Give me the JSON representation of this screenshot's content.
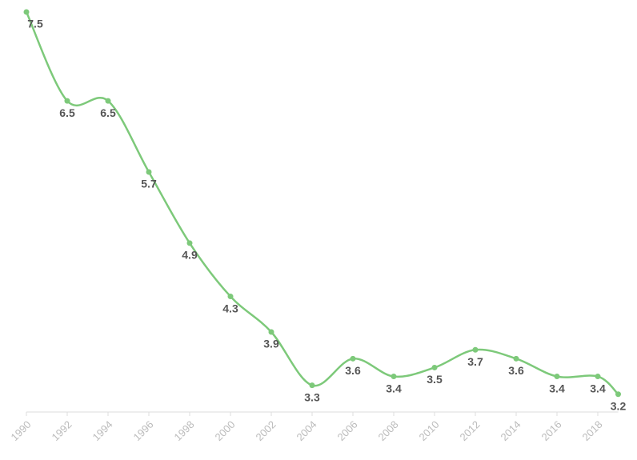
{
  "chart_data": {
    "type": "line",
    "x": [
      1990,
      1992,
      1994,
      1996,
      1998,
      2000,
      2002,
      2004,
      2006,
      2008,
      2010,
      2012,
      2014,
      2016,
      2018,
      2019
    ],
    "values": [
      7.5,
      6.5,
      6.5,
      5.7,
      4.9,
      4.3,
      3.9,
      3.3,
      3.6,
      3.4,
      3.5,
      3.7,
      3.6,
      3.4,
      3.4,
      3.2
    ],
    "color": "#7dc97a",
    "xlim": [
      1990,
      2019
    ],
    "xticks": [
      1990,
      1992,
      1994,
      1996,
      1998,
      2000,
      2002,
      2004,
      2006,
      2008,
      2010,
      2012,
      2014,
      2016,
      2018
    ],
    "ylim": [
      3,
      7.5
    ],
    "smooth": true
  }
}
